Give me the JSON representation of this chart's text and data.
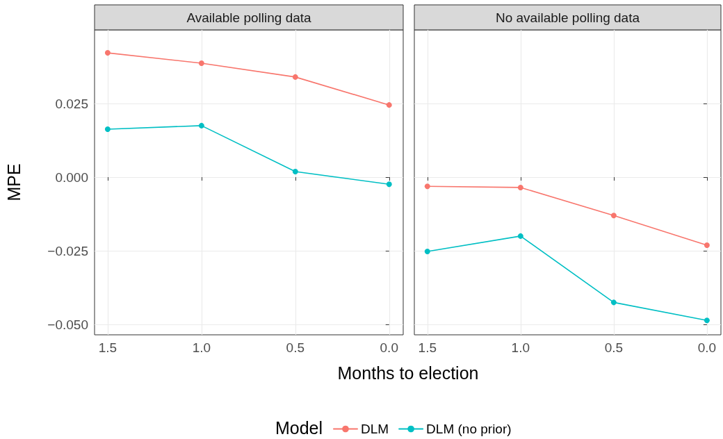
{
  "chart_data": [
    {
      "type": "line",
      "title": "Available polling data",
      "xlabel": "Months to election",
      "ylabel": "MPE",
      "legend_title": "Model",
      "legend": "bottom",
      "grid": true,
      "marker": "circle",
      "line_style": "solid",
      "x": [
        1.5,
        1.0,
        0.5,
        0.0
      ],
      "xlim": [
        1.57,
        -0.075
      ],
      "xticks": [
        {
          "value": 1.5,
          "label": "1.5"
        },
        {
          "value": 1.0,
          "label": "1.0"
        },
        {
          "value": 0.5,
          "label": "0.5"
        },
        {
          "value": 0.0,
          "label": "0.0"
        }
      ],
      "ylim": [
        -0.0535,
        0.05
      ],
      "yticks": [
        {
          "value": -0.05,
          "label": "−0.050"
        },
        {
          "value": -0.025,
          "label": "−0.025"
        },
        {
          "value": 0.0,
          "label": "0.000"
        },
        {
          "value": 0.025,
          "label": "0.025"
        }
      ],
      "series": [
        {
          "name": "DLM",
          "color": "#f8766d",
          "values": [
            0.0422,
            0.0387,
            0.034,
            0.0245
          ]
        },
        {
          "name": "DLM (no prior)",
          "color": "#00bfc4",
          "values": [
            0.0163,
            0.0175,
            0.0019,
            -0.0024
          ]
        }
      ]
    },
    {
      "type": "line",
      "title": "No available polling data",
      "grid": true,
      "marker": "circle",
      "line_style": "solid",
      "tick_labels": "x",
      "x": [
        1.5,
        1.0,
        0.5,
        0.0
      ],
      "xlim": [
        1.57,
        -0.075
      ],
      "xticks": [
        {
          "value": 1.5,
          "label": "1.5"
        },
        {
          "value": 1.0,
          "label": "1.0"
        },
        {
          "value": 0.5,
          "label": "0.5"
        },
        {
          "value": 0.0,
          "label": "0.0"
        }
      ],
      "ylim": [
        -0.0535,
        0.05
      ],
      "yticks": [
        {
          "value": -0.05,
          "label": null
        },
        {
          "value": -0.025,
          "label": null
        },
        {
          "value": 0.0,
          "label": null
        },
        {
          "value": 0.025,
          "label": null
        }
      ],
      "series": [
        {
          "color": "#f8766d",
          "values": [
            -0.0031,
            -0.0035,
            -0.013,
            -0.0231
          ]
        },
        {
          "color": "#00bfc4",
          "values": [
            -0.0252,
            -0.02,
            -0.0425,
            -0.0486
          ]
        }
      ]
    }
  ]
}
